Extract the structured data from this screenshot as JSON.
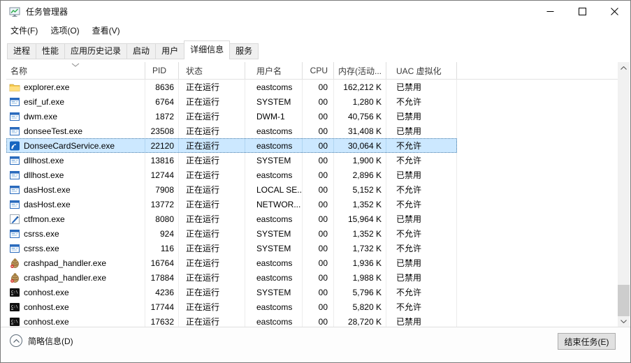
{
  "window": {
    "title": "任务管理器"
  },
  "menu": {
    "items": [
      "文件(F)",
      "选项(O)",
      "查看(V)"
    ]
  },
  "tabs": {
    "items": [
      "进程",
      "性能",
      "应用历史记录",
      "启动",
      "用户",
      "详细信息",
      "服务"
    ],
    "active": "详细信息"
  },
  "table": {
    "columns": [
      {
        "key": "name",
        "label": "名称",
        "sort": "desc"
      },
      {
        "key": "pid",
        "label": "PID"
      },
      {
        "key": "status",
        "label": "状态"
      },
      {
        "key": "user",
        "label": "用户名"
      },
      {
        "key": "cpu",
        "label": "CPU"
      },
      {
        "key": "mem",
        "label": "内存(活动..."
      },
      {
        "key": "uac",
        "label": "UAC 虚拟化"
      }
    ],
    "rows": [
      {
        "icon": "folder-icon",
        "name": "explorer.exe",
        "pid": "8636",
        "status": "正在运行",
        "user": "eastcoms",
        "cpu": "00",
        "mem": "162,212 K",
        "uac": "已禁用",
        "selected": false
      },
      {
        "icon": "app-window-icon",
        "name": "esif_uf.exe",
        "pid": "6764",
        "status": "正在运行",
        "user": "SYSTEM",
        "cpu": "00",
        "mem": "1,280 K",
        "uac": "不允许",
        "selected": false
      },
      {
        "icon": "app-window-icon",
        "name": "dwm.exe",
        "pid": "1872",
        "status": "正在运行",
        "user": "DWM-1",
        "cpu": "00",
        "mem": "40,756 K",
        "uac": "已禁用",
        "selected": false
      },
      {
        "icon": "app-window-icon",
        "name": "donseeTest.exe",
        "pid": "23508",
        "status": "正在运行",
        "user": "eastcoms",
        "cpu": "00",
        "mem": "31,408 K",
        "uac": "已禁用",
        "selected": false
      },
      {
        "icon": "card-service-icon",
        "name": "DonseeCardService.exe",
        "pid": "22120",
        "status": "正在运行",
        "user": "eastcoms",
        "cpu": "00",
        "mem": "30,064 K",
        "uac": "不允许",
        "selected": true
      },
      {
        "icon": "app-window-icon",
        "name": "dllhost.exe",
        "pid": "13816",
        "status": "正在运行",
        "user": "SYSTEM",
        "cpu": "00",
        "mem": "1,900 K",
        "uac": "不允许",
        "selected": false
      },
      {
        "icon": "app-window-icon",
        "name": "dllhost.exe",
        "pid": "12744",
        "status": "正在运行",
        "user": "eastcoms",
        "cpu": "00",
        "mem": "2,896 K",
        "uac": "已禁用",
        "selected": false
      },
      {
        "icon": "app-window-icon",
        "name": "dasHost.exe",
        "pid": "7908",
        "status": "正在运行",
        "user": "LOCAL SE...",
        "cpu": "00",
        "mem": "5,152 K",
        "uac": "不允许",
        "selected": false
      },
      {
        "icon": "app-window-icon",
        "name": "dasHost.exe",
        "pid": "13772",
        "status": "正在运行",
        "user": "NETWOR...",
        "cpu": "00",
        "mem": "1,352 K",
        "uac": "不允许",
        "selected": false
      },
      {
        "icon": "pen-icon",
        "name": "ctfmon.exe",
        "pid": "8080",
        "status": "正在运行",
        "user": "eastcoms",
        "cpu": "00",
        "mem": "15,964 K",
        "uac": "已禁用",
        "selected": false
      },
      {
        "icon": "app-window-icon",
        "name": "csrss.exe",
        "pid": "924",
        "status": "正在运行",
        "user": "SYSTEM",
        "cpu": "00",
        "mem": "1,352 K",
        "uac": "不允许",
        "selected": false
      },
      {
        "icon": "app-window-icon",
        "name": "csrss.exe",
        "pid": "116",
        "status": "正在运行",
        "user": "SYSTEM",
        "cpu": "00",
        "mem": "1,732 K",
        "uac": "不允许",
        "selected": false
      },
      {
        "icon": "bug-icon",
        "name": "crashpad_handler.exe",
        "pid": "16764",
        "status": "正在运行",
        "user": "eastcoms",
        "cpu": "00",
        "mem": "1,936 K",
        "uac": "已禁用",
        "selected": false
      },
      {
        "icon": "bug-icon",
        "name": "crashpad_handler.exe",
        "pid": "17884",
        "status": "正在运行",
        "user": "eastcoms",
        "cpu": "00",
        "mem": "1,988 K",
        "uac": "已禁用",
        "selected": false
      },
      {
        "icon": "console-icon",
        "name": "conhost.exe",
        "pid": "4236",
        "status": "正在运行",
        "user": "SYSTEM",
        "cpu": "00",
        "mem": "5,796 K",
        "uac": "不允许",
        "selected": false
      },
      {
        "icon": "console-icon",
        "name": "conhost.exe",
        "pid": "17744",
        "status": "正在运行",
        "user": "eastcoms",
        "cpu": "00",
        "mem": "5,820 K",
        "uac": "不允许",
        "selected": false
      },
      {
        "icon": "console-icon",
        "name": "conhost.exe",
        "pid": "17632",
        "status": "正在运行",
        "user": "eastcoms",
        "cpu": "00",
        "mem": "28,720 K",
        "uac": "已禁用",
        "selected": false
      }
    ]
  },
  "footer": {
    "toggle_label": "简略信息(D)",
    "end_task_label": "结束任务(E)"
  },
  "colors": {
    "selection_bg": "#cce8ff",
    "selection_outline": "#4c7ea8",
    "tab_inactive_bg": "#f0f0f0",
    "header_border": "#d9d9d9"
  }
}
